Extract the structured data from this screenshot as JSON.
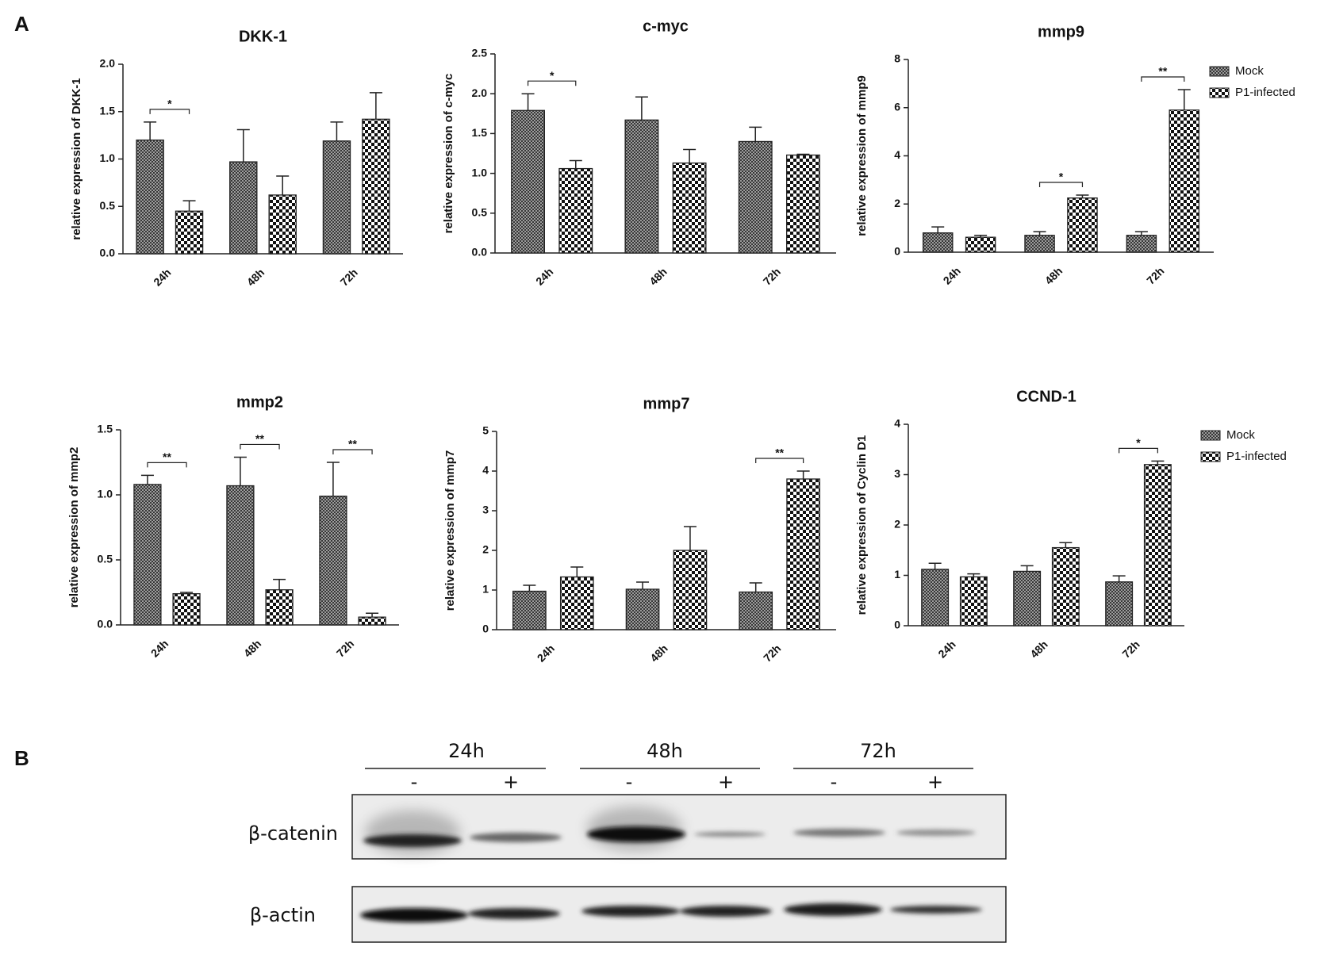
{
  "panel_labels": [
    "A",
    "B"
  ],
  "chart_data": [
    {
      "type": "bar",
      "title": "DKK-1",
      "y_label": "relative expression of DKK-1",
      "categories": [
        "24h",
        "48h",
        "72h"
      ],
      "series": [
        {
          "pattern": "crosshatch",
          "values": [
            1.2,
            0.97,
            1.19
          ],
          "errors": [
            0.19,
            0.34,
            0.2
          ]
        },
        {
          "pattern": "checker",
          "values": [
            0.45,
            0.62,
            1.42
          ],
          "errors": [
            0.11,
            0.2,
            0.28
          ]
        }
      ],
      "significance": [
        "*",
        null,
        null
      ],
      "ylim": [
        0,
        2
      ],
      "yticks": [
        {
          "value": 0,
          "label": "0.0"
        },
        {
          "value": 0.5,
          "label": "0.5"
        },
        {
          "value": 1,
          "label": "1.0"
        },
        {
          "value": 1.5,
          "label": "1.5"
        },
        {
          "value": 2,
          "label": "2.0"
        }
      ],
      "legend": false
    },
    {
      "type": "bar",
      "title": "c-myc",
      "y_label": "relative expression of c-myc",
      "categories": [
        "24h",
        "48h",
        "72h"
      ],
      "series": [
        {
          "pattern": "crosshatch",
          "values": [
            1.79,
            1.67,
            1.4
          ],
          "errors": [
            0.21,
            0.29,
            0.18
          ]
        },
        {
          "pattern": "checker",
          "values": [
            1.06,
            1.13,
            1.23
          ],
          "errors": [
            0.1,
            0.17,
            0.01
          ]
        }
      ],
      "significance": [
        "*",
        null,
        null
      ],
      "ylim": [
        0,
        2.5
      ],
      "yticks": [
        {
          "value": 0,
          "label": "0.0"
        },
        {
          "value": 0.5,
          "label": "0.5"
        },
        {
          "value": 1,
          "label": "1.0"
        },
        {
          "value": 1.5,
          "label": "1.5"
        },
        {
          "value": 2,
          "label": "2.0"
        },
        {
          "value": 2.5,
          "label": "2.5"
        }
      ],
      "legend": false
    },
    {
      "type": "bar",
      "title": "mmp9",
      "y_label": "relative expression of mmp9",
      "categories": [
        "24h",
        "48h",
        "72h"
      ],
      "series": [
        {
          "name": "Mock",
          "pattern": "crosshatch",
          "values": [
            0.8,
            0.7,
            0.7
          ],
          "errors": [
            0.25,
            0.15,
            0.15
          ]
        },
        {
          "name": "P1-infected",
          "pattern": "checker",
          "values": [
            0.62,
            2.25,
            5.9
          ],
          "errors": [
            0.08,
            0.12,
            0.85
          ]
        }
      ],
      "significance": [
        null,
        "*",
        "**"
      ],
      "ylim": [
        0,
        8
      ],
      "yticks": [
        0,
        2,
        4,
        6,
        8
      ],
      "legend": true
    },
    {
      "type": "bar",
      "title": "mmp2",
      "y_label": "relative expression of mmp2",
      "categories": [
        "24h",
        "48h",
        "72h"
      ],
      "series": [
        {
          "pattern": "crosshatch",
          "values": [
            1.08,
            1.07,
            0.99
          ],
          "errors": [
            0.07,
            0.22,
            0.26
          ]
        },
        {
          "pattern": "checker",
          "values": [
            0.24,
            0.27,
            0.06
          ],
          "errors": [
            0.01,
            0.08,
            0.03
          ]
        }
      ],
      "significance": [
        "**",
        "**",
        "**"
      ],
      "ylim": [
        0,
        1.5
      ],
      "yticks": [
        {
          "value": 0,
          "label": "0.0"
        },
        {
          "value": 0.5,
          "label": "0.5"
        },
        {
          "value": 1,
          "label": "1.0"
        },
        {
          "value": 1.5,
          "label": "1.5"
        }
      ],
      "legend": false
    },
    {
      "type": "bar",
      "title": "mmp7",
      "y_label": "relative expression of mmp7",
      "categories": [
        "24h",
        "48h",
        "72h"
      ],
      "series": [
        {
          "pattern": "crosshatch",
          "values": [
            0.97,
            1.02,
            0.95
          ],
          "errors": [
            0.15,
            0.18,
            0.23
          ]
        },
        {
          "pattern": "checker",
          "values": [
            1.33,
            2.0,
            3.8
          ],
          "errors": [
            0.25,
            0.6,
            0.2
          ]
        }
      ],
      "significance": [
        null,
        null,
        "**"
      ],
      "ylim": [
        0,
        5
      ],
      "yticks": [
        0,
        1,
        2,
        3,
        4,
        5
      ],
      "legend": false
    },
    {
      "type": "bar",
      "title": "CCND-1",
      "y_label": "relative expression of Cyclin D1",
      "categories": [
        "24h",
        "48h",
        "72h"
      ],
      "series": [
        {
          "name": "Mock",
          "pattern": "crosshatch",
          "values": [
            1.12,
            1.08,
            0.87
          ],
          "errors": [
            0.12,
            0.11,
            0.12
          ]
        },
        {
          "name": "P1-infected",
          "pattern": "checker",
          "values": [
            0.97,
            1.55,
            3.2
          ],
          "errors": [
            0.06,
            0.1,
            0.07
          ]
        }
      ],
      "significance": [
        null,
        null,
        "*"
      ],
      "ylim": [
        0,
        4
      ],
      "yticks": [
        0,
        1,
        2,
        3,
        4
      ],
      "legend": true
    }
  ],
  "blot": {
    "time_points": [
      "24h",
      "48h",
      "72h"
    ],
    "treatment": [
      "-",
      "+"
    ],
    "rows": [
      "β-catenin",
      "β-actin"
    ]
  }
}
